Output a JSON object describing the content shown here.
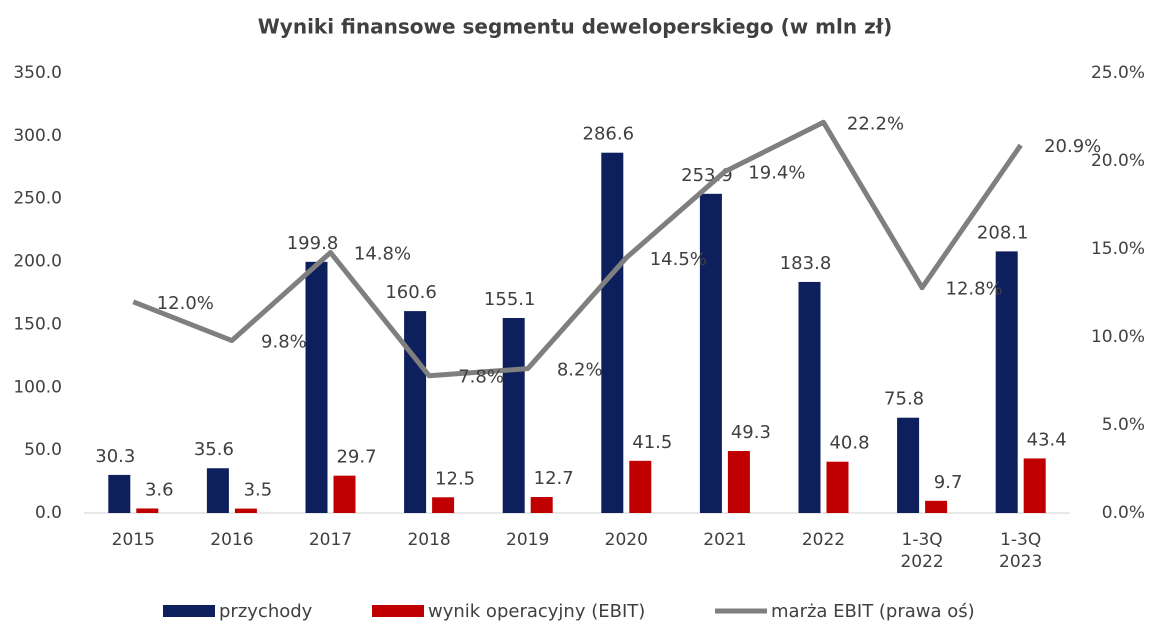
{
  "chart_data": {
    "type": "bar",
    "title": "Wyniki finansowe segmentu deweloperskiego (w mln zł)",
    "categories": [
      "2015",
      "2016",
      "2017",
      "2018",
      "2019",
      "2020",
      "2021",
      "2022",
      "1-3Q 2022",
      "1-3Q 2023"
    ],
    "series": [
      {
        "name": "przychody",
        "color": "#0d1f5c",
        "values": [
          30.3,
          35.6,
          199.8,
          160.6,
          155.1,
          286.6,
          253.9,
          183.8,
          75.8,
          208.1
        ]
      },
      {
        "name": "wynik operacyjny (EBIT)",
        "color": "#c00000",
        "values": [
          3.6,
          3.5,
          29.7,
          12.5,
          12.7,
          41.5,
          49.3,
          40.8,
          9.7,
          43.4
        ]
      },
      {
        "name": "marża EBIT (prawa oś)",
        "color": "#7f7f7f",
        "type": "line",
        "axis": "y2",
        "values": [
          12.0,
          9.8,
          14.8,
          7.8,
          8.2,
          14.5,
          19.4,
          22.2,
          12.8,
          20.9
        ],
        "value_labels": [
          "12.0%",
          "9.8%",
          "14.8%",
          "7.8%",
          "8.2%",
          "14.5%",
          "19.4%",
          "22.2%",
          "12.8%",
          "20.9%"
        ]
      }
    ],
    "ylim": [
      0,
      350
    ],
    "yticks": [
      {
        "value": 0,
        "label": "0.0"
      },
      {
        "value": 50,
        "label": "50.0"
      },
      {
        "value": 100,
        "label": "100.0"
      },
      {
        "value": 150,
        "label": "150.0"
      },
      {
        "value": 200,
        "label": "200.0"
      },
      {
        "value": 250,
        "label": "250.0"
      },
      {
        "value": 300,
        "label": "300.0"
      },
      {
        "value": 350,
        "label": "350.0"
      }
    ],
    "y2lim": [
      0,
      25
    ],
    "y2ticks": [
      {
        "value": 0,
        "label": "0.0%"
      },
      {
        "value": 5,
        "label": "5.0%"
      },
      {
        "value": 10,
        "label": "10.0%"
      },
      {
        "value": 15,
        "label": "15.0%"
      },
      {
        "value": 20,
        "label": "20.0%"
      },
      {
        "value": 25,
        "label": "25.0%"
      }
    ],
    "grid": false,
    "legend": "bottom"
  }
}
